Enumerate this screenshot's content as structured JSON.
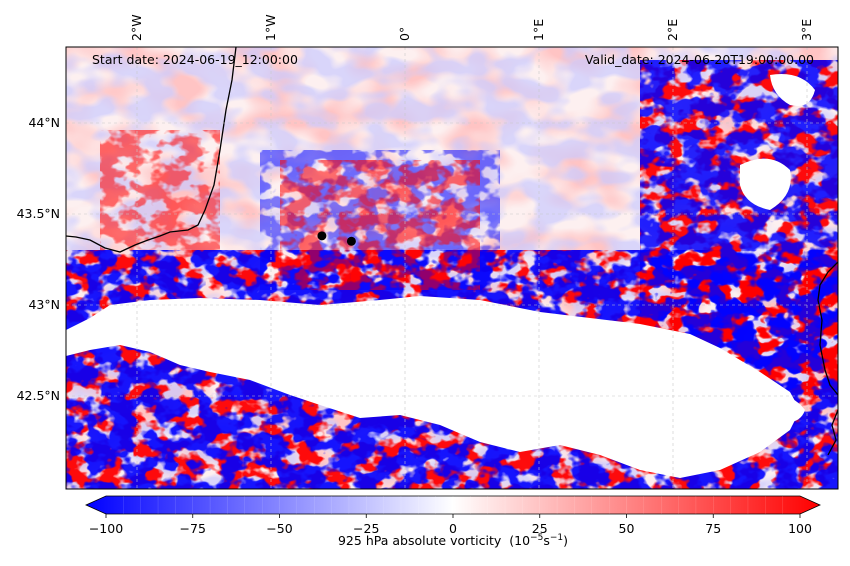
{
  "figure": {
    "start_label": "Start date: 2024-06-19_12:00:00",
    "valid_label": "Valid_date: 2024-06-20T19:00:00.00",
    "colors": {
      "strong_neg": "#0000ff",
      "neg": "#8080ff",
      "neutral": "#ffffff",
      "pos": "#ff8080",
      "strong_pos": "#ff0000",
      "masked": "#ffffff",
      "coast": "#000000",
      "grid": "#c8c8c8"
    },
    "map": {
      "lon_range": [
        -2.5,
        3.2
      ],
      "lat_range": [
        42.0,
        44.4
      ],
      "lon_ticks": [
        {
          "value": -2,
          "label": "2°W"
        },
        {
          "value": -1,
          "label": "1°W"
        },
        {
          "value": 0,
          "label": "0°"
        },
        {
          "value": 1,
          "label": "1°E"
        },
        {
          "value": 2,
          "label": "2°E"
        },
        {
          "value": 3,
          "label": "3°E"
        }
      ],
      "lat_ticks": [
        {
          "value": 44.0,
          "label": "44°N"
        },
        {
          "value": 43.5,
          "label": "43.5°N"
        },
        {
          "value": 43.0,
          "label": "43°N"
        },
        {
          "value": 42.5,
          "label": "42.5°N"
        }
      ],
      "markers": [
        {
          "lon": -0.62,
          "lat": 43.38
        },
        {
          "lon": -0.4,
          "lat": 43.35
        }
      ]
    },
    "colorbar": {
      "title": "925 hPa absolute vorticity",
      "units_base": "(10",
      "units_exp1": "−5",
      "units_mid": "s",
      "units_exp2": "−1",
      "units_end": ")",
      "range": [
        -100,
        100
      ],
      "ticks": [
        {
          "value": -100,
          "label": "−100"
        },
        {
          "value": -75,
          "label": "−75"
        },
        {
          "value": -50,
          "label": "−50"
        },
        {
          "value": -25,
          "label": "−25"
        },
        {
          "value": 0,
          "label": "0"
        },
        {
          "value": 25,
          "label": "25"
        },
        {
          "value": 50,
          "label": "50"
        },
        {
          "value": 75,
          "label": "75"
        },
        {
          "value": 100,
          "label": "100"
        }
      ]
    }
  }
}
